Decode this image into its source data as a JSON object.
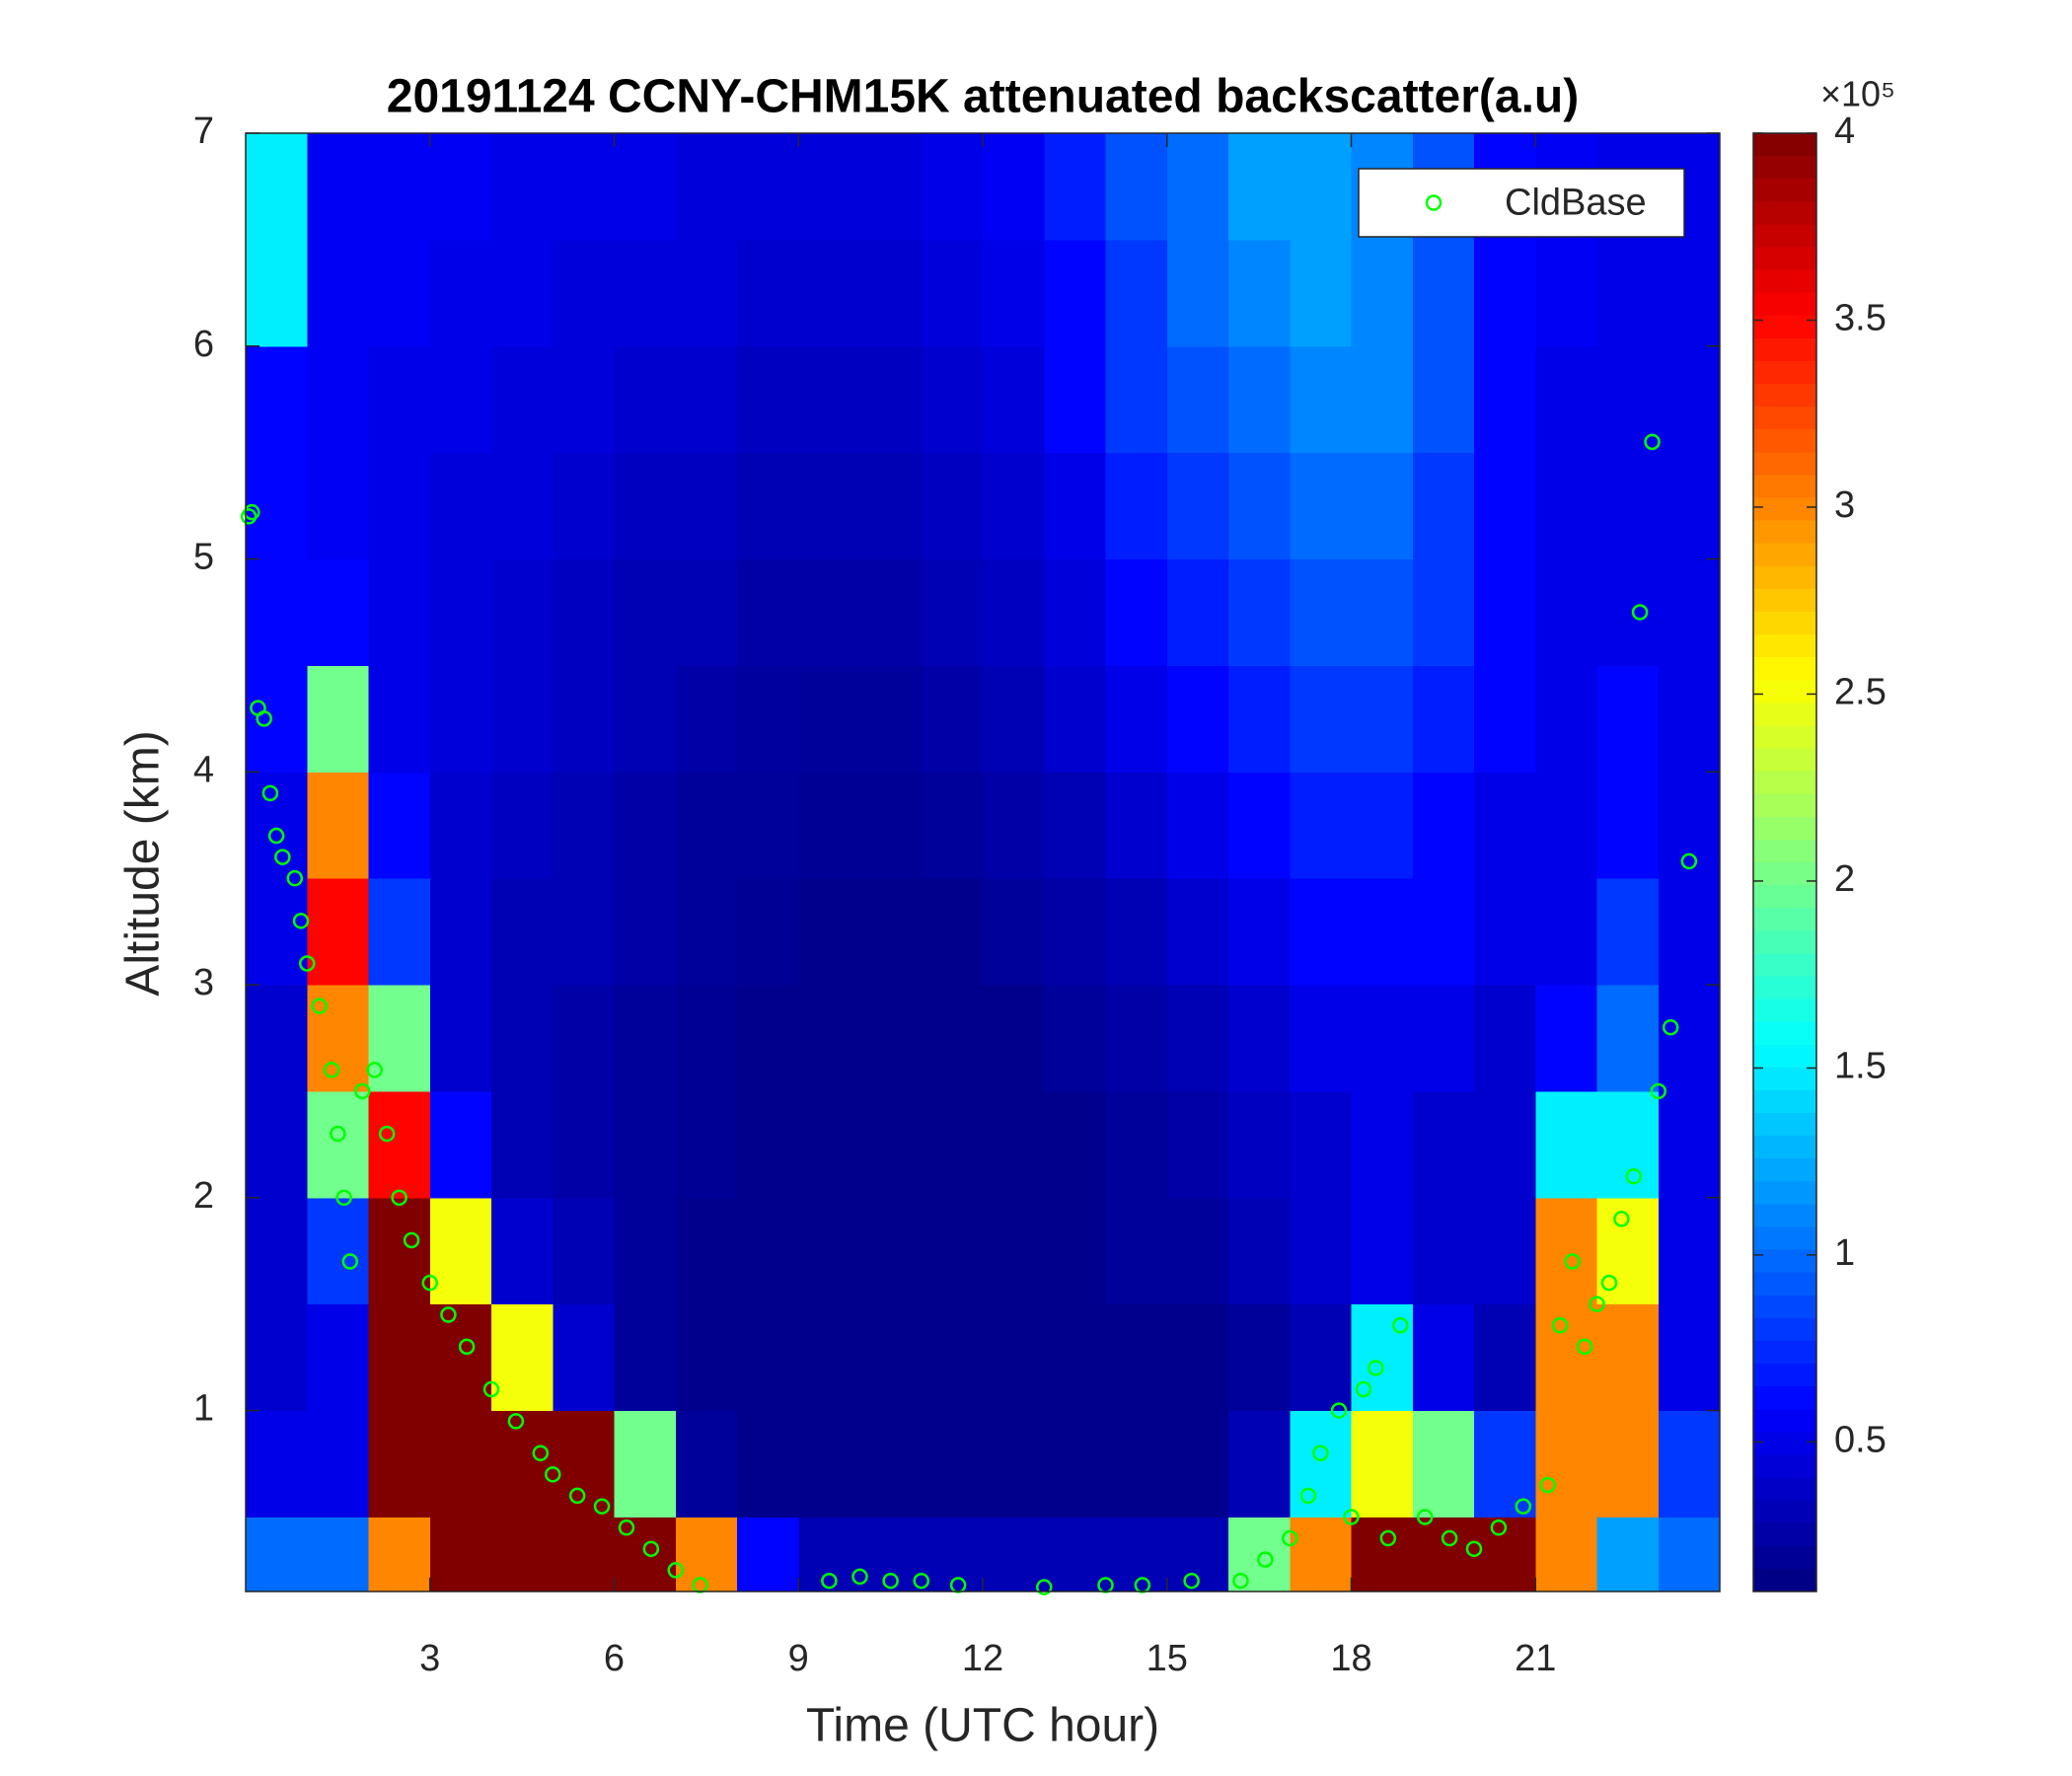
{
  "chart_data": {
    "type": "heatmap",
    "title": "20191124 CCNY-CHM15K attenuated backscatter(a.u)",
    "xlabel": "Time (UTC hour)",
    "ylabel": "Altitude (km)",
    "colorbar_exponent": "×10⁵",
    "colormap": "jet",
    "xlim": [
      0,
      24
    ],
    "xticks": [
      3,
      6,
      9,
      12,
      15,
      18,
      21
    ],
    "ylim": [
      0.15,
      7
    ],
    "yticks": [
      1,
      2,
      3,
      4,
      5,
      6,
      7
    ],
    "clim": [
      0.1,
      4
    ],
    "cticks": [
      0.5,
      1,
      1.5,
      2,
      2.5,
      3,
      3.5,
      4
    ],
    "x_edges": [
      0,
      1,
      2,
      3,
      4,
      5,
      6,
      7,
      8,
      9,
      10,
      11,
      12,
      13,
      14,
      15,
      16,
      17,
      18,
      19,
      20,
      21,
      22,
      23,
      24
    ],
    "y_edges": [
      0.15,
      0.5,
      1,
      1.5,
      2,
      2.5,
      3,
      3.5,
      4,
      4.5,
      5,
      5.5,
      6,
      6.5,
      7
    ],
    "z": [
      [
        1.0,
        1.0,
        3.0,
        4,
        4,
        4,
        4,
        3.0,
        0.6,
        0.3,
        0.3,
        0.3,
        0.3,
        0.3,
        0.3,
        0.3,
        2.0,
        3.0,
        4,
        4,
        4,
        3.0,
        1.2,
        1.0
      ],
      [
        0.5,
        0.5,
        4,
        4,
        4,
        4,
        2.0,
        0.2,
        0.15,
        0.15,
        0.15,
        0.15,
        0.15,
        0.15,
        0.15,
        0.15,
        0.3,
        1.5,
        2.5,
        2.0,
        0.8,
        3.0,
        3.0,
        0.8
      ],
      [
        0.4,
        0.5,
        4,
        4,
        2.5,
        0.4,
        0.2,
        0.15,
        0.15,
        0.15,
        0.15,
        0.15,
        0.15,
        0.15,
        0.15,
        0.15,
        0.2,
        0.3,
        1.5,
        0.5,
        0.3,
        3.0,
        3.0,
        0.5
      ],
      [
        0.4,
        0.8,
        4,
        2.5,
        0.4,
        0.3,
        0.2,
        0.15,
        0.15,
        0.15,
        0.15,
        0.15,
        0.15,
        0.15,
        0.2,
        0.2,
        0.3,
        0.4,
        0.5,
        0.4,
        0.4,
        3.0,
        2.5,
        0.5
      ],
      [
        0.4,
        2.0,
        3.5,
        0.6,
        0.3,
        0.25,
        0.2,
        0.18,
        0.15,
        0.15,
        0.15,
        0.15,
        0.15,
        0.15,
        0.2,
        0.25,
        0.35,
        0.4,
        0.5,
        0.4,
        0.4,
        1.5,
        1.5,
        0.5
      ],
      [
        0.4,
        3.0,
        2.0,
        0.4,
        0.3,
        0.25,
        0.2,
        0.18,
        0.15,
        0.15,
        0.15,
        0.15,
        0.15,
        0.2,
        0.25,
        0.3,
        0.4,
        0.5,
        0.5,
        0.5,
        0.4,
        0.6,
        1.0,
        0.5
      ],
      [
        0.5,
        3.5,
        0.8,
        0.4,
        0.3,
        0.3,
        0.25,
        0.2,
        0.18,
        0.15,
        0.15,
        0.15,
        0.2,
        0.25,
        0.3,
        0.4,
        0.5,
        0.6,
        0.6,
        0.6,
        0.5,
        0.5,
        0.8,
        0.5
      ],
      [
        0.5,
        3.0,
        0.6,
        0.4,
        0.35,
        0.3,
        0.25,
        0.2,
        0.2,
        0.18,
        0.18,
        0.2,
        0.25,
        0.3,
        0.4,
        0.5,
        0.6,
        0.7,
        0.7,
        0.6,
        0.5,
        0.5,
        0.6,
        0.5
      ],
      [
        0.6,
        2.0,
        0.5,
        0.45,
        0.4,
        0.35,
        0.3,
        0.25,
        0.22,
        0.2,
        0.2,
        0.25,
        0.3,
        0.4,
        0.5,
        0.6,
        0.7,
        0.8,
        0.8,
        0.7,
        0.6,
        0.5,
        0.6,
        0.5
      ],
      [
        0.6,
        0.6,
        0.5,
        0.45,
        0.4,
        0.35,
        0.3,
        0.3,
        0.25,
        0.25,
        0.25,
        0.3,
        0.35,
        0.45,
        0.6,
        0.7,
        0.8,
        0.9,
        0.9,
        0.8,
        0.6,
        0.5,
        0.5,
        0.5
      ],
      [
        0.6,
        0.55,
        0.5,
        0.45,
        0.45,
        0.4,
        0.35,
        0.35,
        0.3,
        0.3,
        0.3,
        0.35,
        0.4,
        0.5,
        0.7,
        0.8,
        0.9,
        1.0,
        1.0,
        0.8,
        0.6,
        0.5,
        0.5,
        0.5
      ],
      [
        0.6,
        0.55,
        0.5,
        0.5,
        0.45,
        0.45,
        0.4,
        0.4,
        0.35,
        0.35,
        0.35,
        0.4,
        0.45,
        0.6,
        0.8,
        0.9,
        1.0,
        1.1,
        1.1,
        0.9,
        0.6,
        0.5,
        0.5,
        0.5
      ],
      [
        1.5,
        0.55,
        0.55,
        0.5,
        0.5,
        0.45,
        0.45,
        0.45,
        0.4,
        0.4,
        0.4,
        0.45,
        0.5,
        0.6,
        0.8,
        1.0,
        1.1,
        1.2,
        1.1,
        0.9,
        0.6,
        0.55,
        0.5,
        0.5
      ],
      [
        1.5,
        0.55,
        0.55,
        0.55,
        0.5,
        0.5,
        0.5,
        0.45,
        0.45,
        0.45,
        0.45,
        0.5,
        0.55,
        0.7,
        0.9,
        1.0,
        1.2,
        1.2,
        1.1,
        0.9,
        0.6,
        0.55,
        0.5,
        0.5
      ]
    ],
    "series": [
      {
        "name": "CldBase",
        "color": "#00ff00",
        "type": "scatter",
        "x": [
          0.05,
          0.1,
          0.2,
          0.3,
          0.4,
          0.5,
          0.6,
          0.8,
          0.9,
          1.0,
          1.2,
          1.4,
          1.5,
          1.6,
          1.7,
          1.9,
          2.1,
          2.3,
          2.5,
          2.7,
          3.0,
          3.3,
          3.6,
          4.0,
          4.4,
          4.8,
          5.0,
          5.4,
          5.8,
          6.2,
          6.6,
          7.0,
          7.4,
          9.5,
          10.0,
          10.5,
          11.0,
          11.6,
          13.0,
          14.0,
          14.6,
          15.4,
          16.2,
          16.6,
          17.0,
          17.3,
          17.5,
          17.8,
          18.0,
          18.2,
          18.4,
          18.6,
          18.8,
          19.2,
          19.6,
          20.0,
          20.4,
          20.8,
          21.2,
          21.4,
          21.6,
          21.8,
          22.0,
          22.2,
          22.4,
          22.6,
          22.7,
          22.9,
          23.0,
          23.2,
          23.5
        ],
        "values": [
          5.2,
          5.22,
          4.3,
          4.25,
          3.9,
          3.7,
          3.6,
          3.5,
          3.3,
          3.1,
          2.9,
          2.6,
          2.3,
          2.0,
          1.7,
          2.5,
          2.6,
          2.3,
          2.0,
          1.8,
          1.6,
          1.45,
          1.3,
          1.1,
          0.95,
          0.8,
          0.7,
          0.6,
          0.55,
          0.45,
          0.35,
          0.25,
          0.18,
          0.2,
          0.22,
          0.2,
          0.2,
          0.18,
          0.17,
          0.18,
          0.18,
          0.2,
          0.2,
          0.3,
          0.4,
          0.6,
          0.8,
          1.0,
          0.5,
          1.1,
          1.2,
          0.4,
          1.4,
          0.5,
          0.4,
          0.35,
          0.45,
          0.55,
          0.65,
          1.4,
          1.7,
          1.3,
          1.5,
          1.6,
          1.9,
          2.1,
          4.75,
          5.55,
          2.5,
          2.8,
          3.58
        ]
      }
    ],
    "legend": "upper right"
  }
}
